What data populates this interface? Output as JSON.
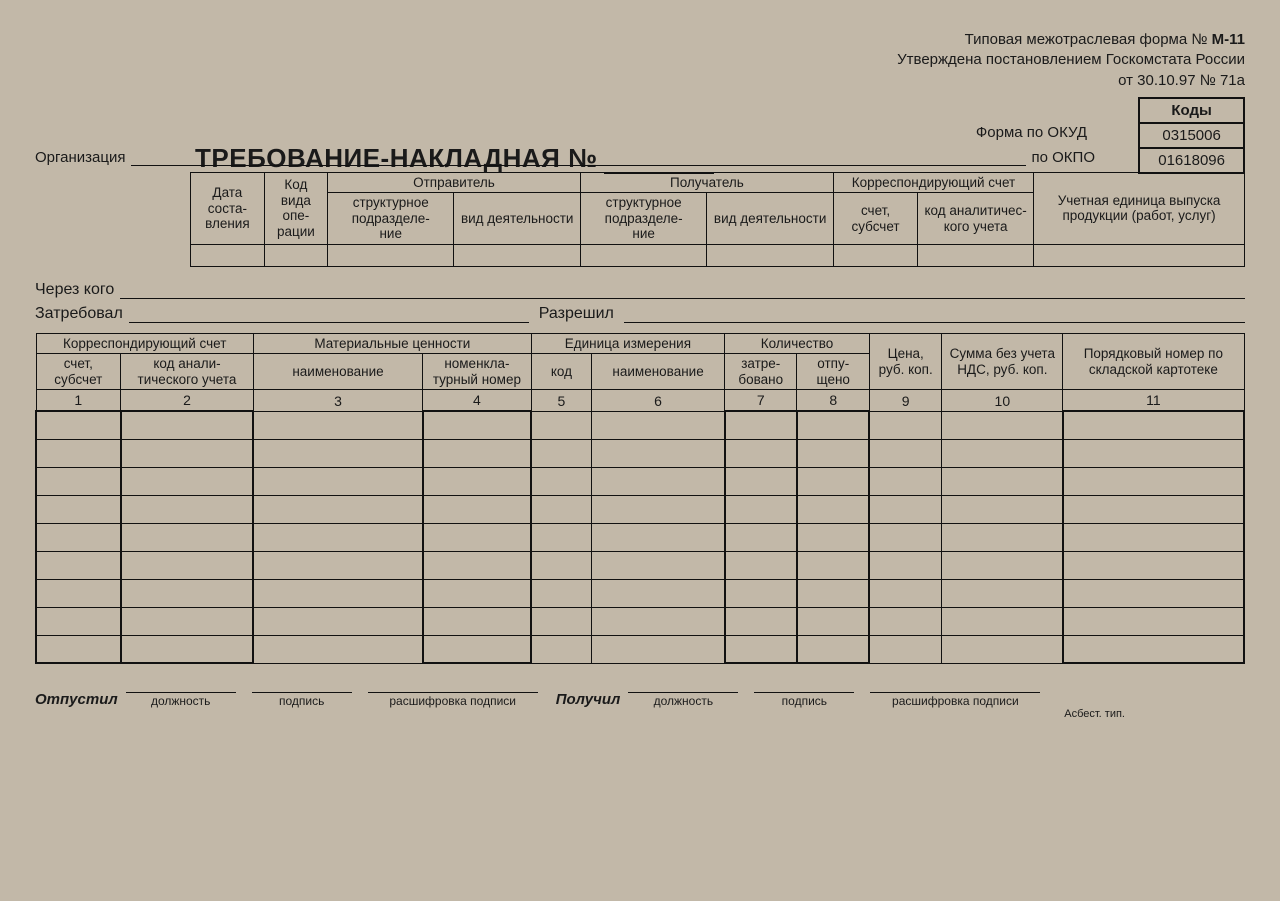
{
  "approval": {
    "line1_pre": "Типовая межотраслевая форма № ",
    "line1_bold": "М-11",
    "line2": "Утверждена постановлением Госкомстата России",
    "line3": "от 30.10.97 № 71а"
  },
  "title": "ТРЕБОВАНИЕ-НАКЛАДНАЯ №",
  "codes": {
    "header": "Коды",
    "okud_label": "Форма по ОКУД",
    "okud_value": "0315006",
    "okpo_label": "по ОКПО",
    "okpo_value": "01618096"
  },
  "org_label": "Организация",
  "header_table": {
    "cols": {
      "date": "Дата соста-\nвления",
      "opcode": "Код вида опе-\nрации",
      "sender": "Отправитель",
      "recipient": "Получатель",
      "corr": "Корреспондирующий счет",
      "unit": "Учетная единица выпуска продукции (работ, услуг)",
      "subdiv": "структурное подразделе-\nние",
      "activity": "вид деятельности",
      "account": "счет, субсчет",
      "anacode": "код аналитичес-\nкого учета"
    }
  },
  "fields": {
    "through": "Через кого",
    "requested": "Затребовал",
    "allowed": "Разрешил"
  },
  "main_table": {
    "groups": {
      "corr": "Корреспондирующий счет",
      "materials": "Материальные ценности",
      "measure": "Единица измерения",
      "qty": "Количество"
    },
    "cols": {
      "c1": "счет, субсчет",
      "c2": "код анали-\nтического учета",
      "c3": "наименование",
      "c4": "номенкла-\nтурный номер",
      "c5": "код",
      "c6": "наименование",
      "c7": "затре-\nбовано",
      "c8": "отпу-\nщено",
      "c9": "Цена, руб. коп.",
      "c10": "Сумма без учета НДС, руб. коп.",
      "c11": "Порядковый номер по складской картотеке"
    },
    "nums": [
      "1",
      "2",
      "3",
      "4",
      "5",
      "6",
      "7",
      "8",
      "9",
      "10",
      "11"
    ],
    "body_rows": 9,
    "col_widths_pct": [
      7,
      11,
      14,
      9,
      5,
      11,
      6,
      6,
      6,
      10,
      15
    ],
    "thick_cols": [
      1,
      2,
      4,
      7,
      8,
      11
    ]
  },
  "signatures": {
    "released": "Отпустил",
    "received": "Получил",
    "position": "должность",
    "sign": "подпись",
    "decode": "расшифровка подписи"
  },
  "footer_tiny": "Асбест. тип.",
  "colors": {
    "paper": "#c2b8a8",
    "ink": "#1a1a1a"
  }
}
